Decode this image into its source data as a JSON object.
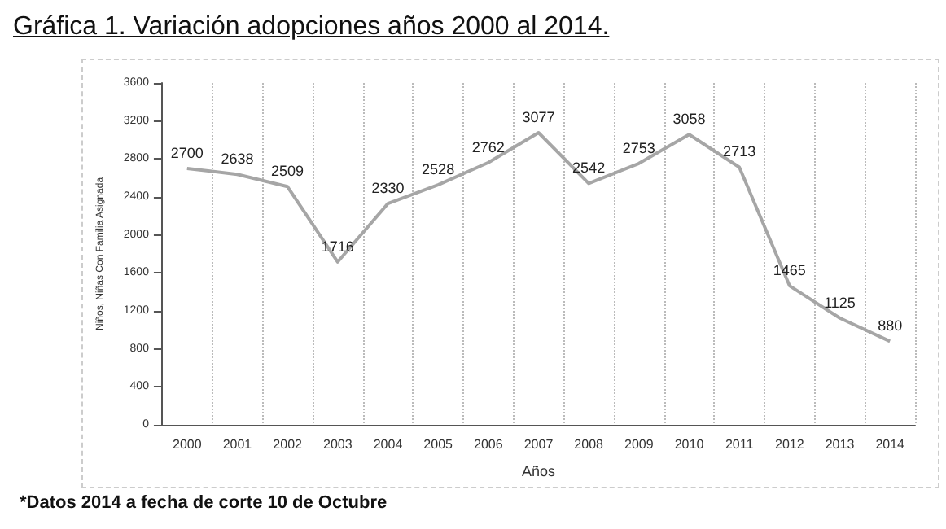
{
  "chart_data": {
    "type": "line",
    "title": "Gráfica 1. Variación adopciones años 2000 al 2014.",
    "xlabel": "Años",
    "ylabel": "Niños, Niñas Con Familia Asignada",
    "categories": [
      "2000",
      "2001",
      "2002",
      "2003",
      "2004",
      "2005",
      "2006",
      "2007",
      "2008",
      "2009",
      "2010",
      "2011",
      "2012",
      "2013",
      "2014"
    ],
    "series": [
      {
        "color": "#a6a6a6",
        "values": [
          2700,
          2638,
          2509,
          1716,
          2330,
          2528,
          2762,
          3077,
          2542,
          2753,
          3058,
          2713,
          1465,
          1125,
          880
        ]
      }
    ],
    "ylim": [
      0,
      3600
    ],
    "yticks": [
      0,
      400,
      800,
      1200,
      1600,
      2000,
      2400,
      2800,
      3200,
      3600
    ],
    "grid": "x",
    "marker": "none",
    "data_labels": true,
    "annotations": [
      "*Datos 2014 a fecha de corte 10 de Octubre"
    ]
  }
}
